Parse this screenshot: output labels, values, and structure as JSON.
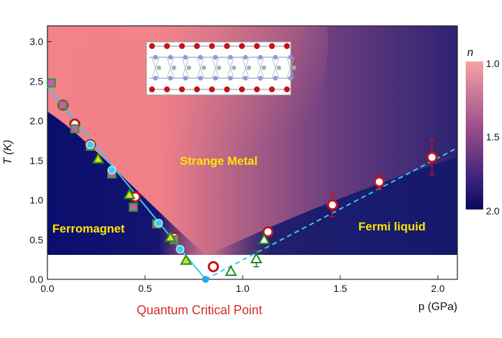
{
  "chart_data": {
    "type": "scatter",
    "title": "",
    "xlabel": "p (GPa)",
    "ylabel": "T (K)",
    "xlim": [
      0,
      2.1
    ],
    "ylim": [
      0,
      3.2
    ],
    "x_ticks": [
      "0.0",
      "0.5",
      "1.0",
      "1.5",
      "2.0"
    ],
    "y_ticks": [
      "0.0",
      "0.5",
      "1.0",
      "1.5",
      "2.0",
      "2.5",
      "3.0"
    ],
    "colorbar": {
      "label": "n",
      "ticks": [
        "1.0",
        "1.5",
        "2.0"
      ]
    },
    "regions": [
      {
        "name": "Ferromagnet"
      },
      {
        "name": "Strange Metal"
      },
      {
        "name": "Fermi liquid"
      }
    ],
    "annotations": [
      "Quantum Critical Point"
    ],
    "colors": {
      "ferromagnet": "#0a0e6e",
      "strange_metal": "#f2838a",
      "fermi_liquid": "#26206e",
      "text": "#ffe600",
      "qcp_label": "#d62b2b",
      "line": "#38c8ef"
    },
    "series": [
      {
        "marker": "circle-red",
        "points": [
          [
            0.08,
            2.2
          ],
          [
            0.14,
            1.96
          ],
          [
            0.22,
            1.7
          ],
          [
            0.45,
            1.04
          ],
          [
            0.65,
            0.53
          ],
          [
            0.85,
            0.16
          ],
          [
            1.13,
            0.6
          ],
          [
            1.46,
            0.94
          ],
          [
            1.7,
            1.23
          ],
          [
            1.97,
            1.54
          ]
        ],
        "yerr": [
          0,
          0,
          0,
          0,
          0,
          0,
          0,
          0.15,
          0.1,
          0.22
        ]
      },
      {
        "marker": "square-green",
        "points": [
          [
            0.02,
            2.48
          ],
          [
            0.08,
            2.2
          ],
          [
            0.14,
            1.9
          ],
          [
            0.22,
            1.68
          ],
          [
            0.33,
            1.33
          ],
          [
            0.44,
            0.91
          ],
          [
            0.56,
            0.7
          ],
          [
            0.65,
            0.5
          ]
        ]
      },
      {
        "marker": "triangle-green",
        "points": [
          [
            0.26,
            1.52
          ],
          [
            0.42,
            1.07
          ],
          [
            0.63,
            0.53
          ],
          [
            0.71,
            0.24
          ],
          [
            0.94,
            0.1
          ],
          [
            1.07,
            0.26
          ],
          [
            1.11,
            0.5
          ]
        ],
        "yerr": [
          0,
          0,
          0,
          0,
          0,
          0.1,
          0
        ]
      },
      {
        "marker": "circle-cyan",
        "points": [
          [
            0.22,
            1.7
          ],
          [
            0.33,
            1.38
          ],
          [
            0.57,
            0.71
          ],
          [
            0.68,
            0.38
          ]
        ]
      }
    ],
    "fits": [
      {
        "style": "solid",
        "points": [
          [
            0.0,
            2.43
          ],
          [
            0.81,
            0.0
          ]
        ]
      },
      {
        "style": "dashed",
        "points": [
          [
            0.81,
            0.0
          ],
          [
            2.1,
            1.66
          ]
        ]
      }
    ],
    "qcp": [
      0.81,
      0.0
    ]
  }
}
